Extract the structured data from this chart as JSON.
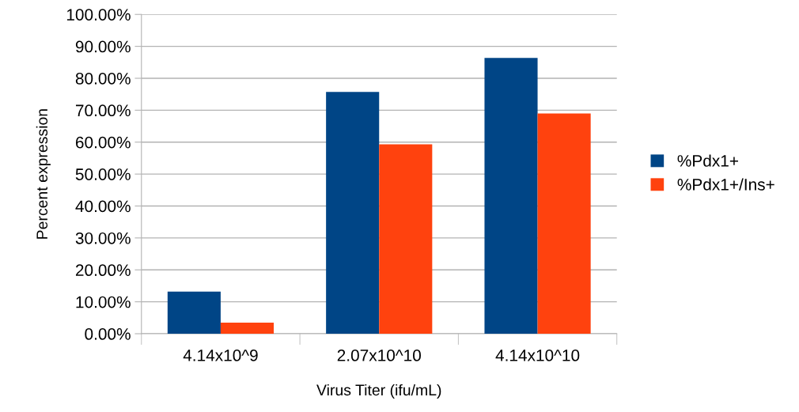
{
  "chart_data": {
    "type": "bar",
    "xlabel": "Virus Titer (ifu/mL)",
    "ylabel": "Percent expression",
    "categories": [
      "4.14x10^9",
      "2.07x10^10",
      "4.14x10^10"
    ],
    "series": [
      {
        "name": "%Pdx1+",
        "color": "#004586",
        "values": [
          13.2,
          75.7,
          86.4
        ]
      },
      {
        "name": "%Pdx1+/Ins+",
        "color": "#ff420e",
        "values": [
          3.5,
          59.3,
          69.0
        ]
      }
    ],
    "ylim": [
      0,
      100
    ],
    "yticks": [
      {
        "value": 0,
        "label": "0.00%"
      },
      {
        "value": 10,
        "label": "10.00%"
      },
      {
        "value": 20,
        "label": "20.00%"
      },
      {
        "value": 30,
        "label": "30.00%"
      },
      {
        "value": 40,
        "label": "40.00%"
      },
      {
        "value": 50,
        "label": "50.00%"
      },
      {
        "value": 60,
        "label": "60.00%"
      },
      {
        "value": 70,
        "label": "70.00%"
      },
      {
        "value": 80,
        "label": "80.00%"
      },
      {
        "value": 90,
        "label": "90.00%"
      },
      {
        "value": 100,
        "label": "100.00%"
      }
    ],
    "grid": "y",
    "legend": "right"
  }
}
